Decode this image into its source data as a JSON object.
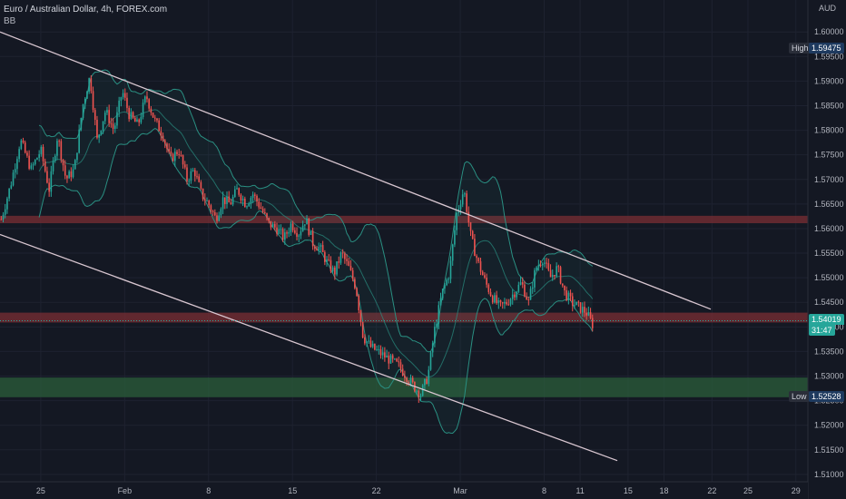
{
  "header": {
    "symbol_title": "Euro / Australian Dollar, 4h, FOREX.com",
    "indicator": "BB",
    "currency": "AUD"
  },
  "colors": {
    "background": "#141823",
    "grid": "#1e2230",
    "axis_text": "#b2b5be",
    "up": "#26a69a",
    "down": "#ef5350",
    "trendline": "#d8c6d0",
    "bb_line": "#2a8f82",
    "resistance_zone": "#7a2d34",
    "support_zone": "#2b5e3b"
  },
  "markers": {
    "high_label": "High",
    "high_value": "1.59475",
    "low_label": "Low",
    "low_value": "1.52528",
    "last_price": "1.54019",
    "countdown": "31:47"
  },
  "chart_data": {
    "type": "candlestick",
    "title": "Euro / Australian Dollar, 4h, FOREX.com",
    "y_ticks": [
      "1.60000",
      "1.59500",
      "1.59000",
      "1.58500",
      "1.58000",
      "1.57500",
      "1.57000",
      "1.56500",
      "1.56000",
      "1.55500",
      "1.55000",
      "1.54500",
      "1.54000",
      "1.53500",
      "1.53000",
      "1.52500",
      "1.52000",
      "1.51500",
      "1.51000"
    ],
    "x_ticks": [
      {
        "label": "25",
        "day": 25
      },
      {
        "label": "Feb",
        "day": 32
      },
      {
        "label": "8",
        "day": 39
      },
      {
        "label": "15",
        "day": 46
      },
      {
        "label": "22",
        "day": 53
      },
      {
        "label": "Mar",
        "day": 60
      },
      {
        "label": "8",
        "day": 67
      },
      {
        "label": "11",
        "day": 70
      },
      {
        "label": "15",
        "day": 74
      },
      {
        "label": "18",
        "day": 77
      },
      {
        "label": "22",
        "day": 81
      },
      {
        "label": "25",
        "day": 84
      },
      {
        "label": "29",
        "day": 88
      }
    ],
    "ylim": [
      1.5085,
      1.6065
    ],
    "xlim": [
      21.6,
      89.0
    ],
    "zones": [
      {
        "kind": "resistance",
        "from": 1.5611,
        "to": 1.5626
      },
      {
        "kind": "resistance",
        "from": 1.5409,
        "to": 1.5429
      },
      {
        "kind": "support",
        "from": 1.5257,
        "to": 1.5297
      }
    ],
    "trendlines": [
      {
        "from": [
          21.6,
          1.6
        ],
        "to": [
          80.9,
          1.5436
        ]
      },
      {
        "from": [
          21.6,
          1.5588
        ],
        "to": [
          73.1,
          1.5128
        ]
      }
    ],
    "price_path": [
      [
        21.6,
        1.561
      ],
      [
        22.5,
        1.569
      ],
      [
        23.3,
        1.578
      ],
      [
        24.2,
        1.572
      ],
      [
        25.0,
        1.576
      ],
      [
        25.7,
        1.568
      ],
      [
        26.4,
        1.579
      ],
      [
        27.1,
        1.57
      ],
      [
        27.8,
        1.572
      ],
      [
        28.5,
        1.585
      ],
      [
        29.1,
        1.591
      ],
      [
        29.7,
        1.578
      ],
      [
        30.4,
        1.584
      ],
      [
        31.1,
        1.58
      ],
      [
        31.8,
        1.588
      ],
      [
        32.4,
        1.583
      ],
      [
        33.1,
        1.581
      ],
      [
        33.8,
        1.587
      ],
      [
        34.5,
        1.582
      ],
      [
        35.2,
        1.579
      ],
      [
        35.8,
        1.574
      ],
      [
        36.5,
        1.576
      ],
      [
        37.2,
        1.57
      ],
      [
        37.8,
        1.572
      ],
      [
        38.4,
        1.567
      ],
      [
        39.0,
        1.565
      ],
      [
        39.6,
        1.562
      ],
      [
        40.2,
        1.566
      ],
      [
        40.8,
        1.565
      ],
      [
        41.4,
        1.568
      ],
      [
        42.1,
        1.565
      ],
      [
        42.7,
        1.567
      ],
      [
        43.4,
        1.564
      ],
      [
        44.0,
        1.561
      ],
      [
        44.7,
        1.56
      ],
      [
        45.3,
        1.558
      ],
      [
        45.9,
        1.561
      ],
      [
        46.5,
        1.559
      ],
      [
        47.1,
        1.562
      ],
      [
        47.7,
        1.557
      ],
      [
        48.3,
        1.556
      ],
      [
        48.9,
        1.553
      ],
      [
        49.5,
        1.551
      ],
      [
        50.1,
        1.555
      ],
      [
        50.7,
        1.552
      ],
      [
        51.3,
        1.548
      ],
      [
        51.9,
        1.538
      ],
      [
        52.5,
        1.536
      ],
      [
        53.1,
        1.535
      ],
      [
        53.7,
        1.534
      ],
      [
        54.3,
        1.533
      ],
      [
        54.9,
        1.532
      ],
      [
        55.5,
        1.53
      ],
      [
        56.1,
        1.528
      ],
      [
        56.7,
        1.5263
      ],
      [
        57.3,
        1.53
      ],
      [
        57.9,
        1.54
      ],
      [
        58.5,
        1.547
      ],
      [
        59.1,
        1.551
      ],
      [
        59.7,
        1.563
      ],
      [
        60.3,
        1.568
      ],
      [
        60.9,
        1.558
      ],
      [
        61.5,
        1.553
      ],
      [
        62.1,
        1.549
      ],
      [
        62.7,
        1.546
      ],
      [
        63.3,
        1.544
      ],
      [
        63.9,
        1.545
      ],
      [
        64.5,
        1.547
      ],
      [
        65.1,
        1.549
      ],
      [
        65.7,
        1.545
      ],
      [
        66.3,
        1.552
      ],
      [
        66.9,
        1.554
      ],
      [
        67.5,
        1.55
      ],
      [
        68.1,
        1.552
      ],
      [
        68.7,
        1.547
      ],
      [
        69.3,
        1.545
      ],
      [
        69.9,
        1.544
      ],
      [
        70.5,
        1.543
      ],
      [
        71.1,
        1.5402
      ]
    ]
  }
}
